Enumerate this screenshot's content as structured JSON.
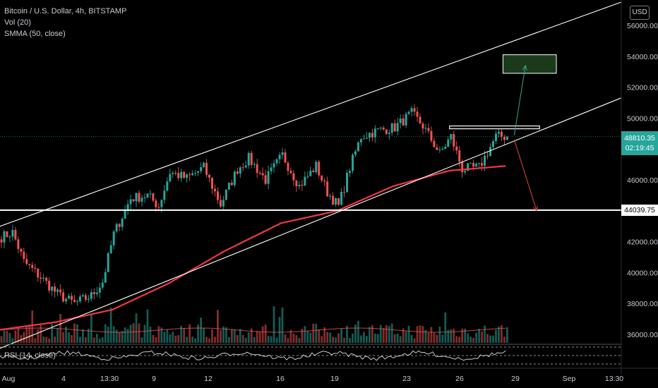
{
  "legend": {
    "symbol": "Bitcoin / U.S. Dollar, 4h, BITSTAMP",
    "volume": "Vol (20)",
    "smma": "SMMA (50, close)",
    "rsi": "RSI (14, close)"
  },
  "currency_button": "USD",
  "price_tags": {
    "current_price": "48810.35",
    "countdown": "02:19:45",
    "level": "44039.75"
  },
  "colors": {
    "background": "#000000",
    "up": "#26a69a",
    "down": "#ef5350",
    "smma": "#f23645",
    "channel": "#ffffff",
    "target_box_fill": "#1b3a1b",
    "up_arrow": "#3aa38a",
    "down_arrow": "#e0483a"
  },
  "chart_data": {
    "type": "candlestick",
    "title": "Bitcoin / U.S. Dollar, 4h, BITSTAMP",
    "y_unit": "USD",
    "ylim": [
      35500,
      57000
    ],
    "y_ticks": [
      "56000.00",
      "54000.00",
      "52000.00",
      "50000.00",
      "48000.00",
      "46000.00",
      "44000.00",
      "42000.00",
      "40000.00",
      "38000.00",
      "36000.00"
    ],
    "x_ticks": [
      "Aug",
      "4",
      "13:30",
      "9",
      "12",
      "16",
      "19",
      "23",
      "26",
      "29",
      "Sep",
      "13:30"
    ],
    "current_price": 48810.35,
    "horizontal_level": 44039.75,
    "close_anchors": [
      {
        "bar": 0,
        "close": 42300
      },
      {
        "bar": 4,
        "close": 42600
      },
      {
        "bar": 8,
        "close": 40700
      },
      {
        "bar": 14,
        "close": 39700
      },
      {
        "bar": 20,
        "close": 38600
      },
      {
        "bar": 26,
        "close": 38000
      },
      {
        "bar": 32,
        "close": 38500
      },
      {
        "bar": 36,
        "close": 39400
      },
      {
        "bar": 40,
        "close": 42500
      },
      {
        "bar": 46,
        "close": 44800
      },
      {
        "bar": 52,
        "close": 45000
      },
      {
        "bar": 56,
        "close": 44300
      },
      {
        "bar": 60,
        "close": 46500
      },
      {
        "bar": 66,
        "close": 46100
      },
      {
        "bar": 72,
        "close": 46800
      },
      {
        "bar": 78,
        "close": 44400
      },
      {
        "bar": 84,
        "close": 46700
      },
      {
        "bar": 88,
        "close": 47400
      },
      {
        "bar": 94,
        "close": 46000
      },
      {
        "bar": 100,
        "close": 47600
      },
      {
        "bar": 106,
        "close": 45600
      },
      {
        "bar": 112,
        "close": 46900
      },
      {
        "bar": 116,
        "close": 45200
      },
      {
        "bar": 120,
        "close": 44300
      },
      {
        "bar": 124,
        "close": 46800
      },
      {
        "bar": 128,
        "close": 48800
      },
      {
        "bar": 134,
        "close": 49200
      },
      {
        "bar": 140,
        "close": 49400
      },
      {
        "bar": 146,
        "close": 50300
      },
      {
        "bar": 150,
        "close": 49500
      },
      {
        "bar": 156,
        "close": 47700
      },
      {
        "bar": 160,
        "close": 48800
      },
      {
        "bar": 164,
        "close": 46700
      },
      {
        "bar": 170,
        "close": 46800
      },
      {
        "bar": 176,
        "close": 48800
      },
      {
        "bar": 180,
        "close": 48810
      }
    ],
    "smma_series": [
      {
        "bar": 0,
        "value": 36300
      },
      {
        "bar": 20,
        "value": 36800
      },
      {
        "bar": 40,
        "value": 37600
      },
      {
        "bar": 60,
        "value": 39300
      },
      {
        "bar": 80,
        "value": 41400
      },
      {
        "bar": 100,
        "value": 43200
      },
      {
        "bar": 120,
        "value": 44000
      },
      {
        "bar": 140,
        "value": 45600
      },
      {
        "bar": 160,
        "value": 46600
      },
      {
        "bar": 180,
        "value": 46900
      }
    ],
    "channel_upper": [
      {
        "bar": 0,
        "price": 43000
      },
      {
        "bar": 221,
        "price": 57500
      }
    ],
    "channel_lower": [
      {
        "bar": 0,
        "price": 35100
      },
      {
        "bar": 221,
        "price": 51300
      }
    ],
    "resistance_segment": {
      "bar_start": 160,
      "bar_end": 192,
      "price": 49400
    },
    "target_box": {
      "bar_start": 179,
      "bar_end": 198,
      "price_top": 54100,
      "price_bottom": 52900
    },
    "arrows": [
      {
        "direction": "up",
        "from_bar": 183,
        "from_price": 48900,
        "to_bar": 187,
        "to_price": 53400
      },
      {
        "direction": "down",
        "from_bar": 183,
        "from_price": 48600,
        "to_bar": 191,
        "to_price": 44000
      }
    ]
  }
}
